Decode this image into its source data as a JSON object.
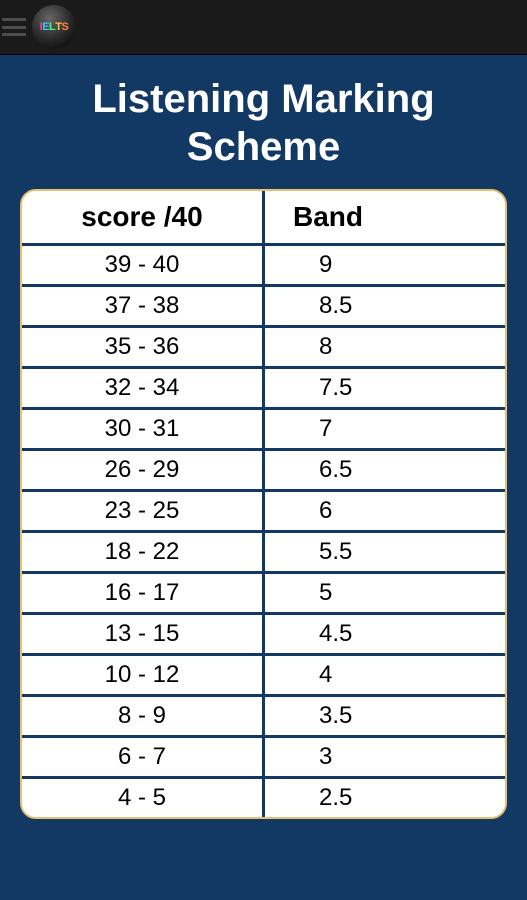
{
  "header": {
    "logo_text": "IELTS"
  },
  "page": {
    "title": "Listening Marking Scheme"
  },
  "table": {
    "columns": [
      "score /40",
      "Band"
    ],
    "rows": [
      [
        "39 - 40",
        "9"
      ],
      [
        "37 - 38",
        "8.5"
      ],
      [
        "35 - 36",
        "8"
      ],
      [
        "32 - 34",
        "7.5"
      ],
      [
        "30 - 31",
        "7"
      ],
      [
        "26 - 29",
        "6.5"
      ],
      [
        "23 - 25",
        "6"
      ],
      [
        "18 - 22",
        "5.5"
      ],
      [
        "16 - 17",
        "5"
      ],
      [
        "13 - 15",
        "4.5"
      ],
      [
        "10 - 12",
        "4"
      ],
      [
        "8 - 9",
        "3.5"
      ],
      [
        "6 - 7",
        "3"
      ],
      [
        "4 - 5",
        "2.5"
      ]
    ]
  },
  "styles": {
    "background_color": "#123864",
    "header_bar_color": "#1a1a1a",
    "title_color": "#ffffff",
    "title_fontsize": 40,
    "table_border_color": "#e8c070",
    "table_border_radius": 16,
    "cell_background": "#ffffff",
    "cell_border_color": "#123864",
    "header_fontsize": 28,
    "cell_fontsize": 24,
    "text_color": "#000000"
  }
}
